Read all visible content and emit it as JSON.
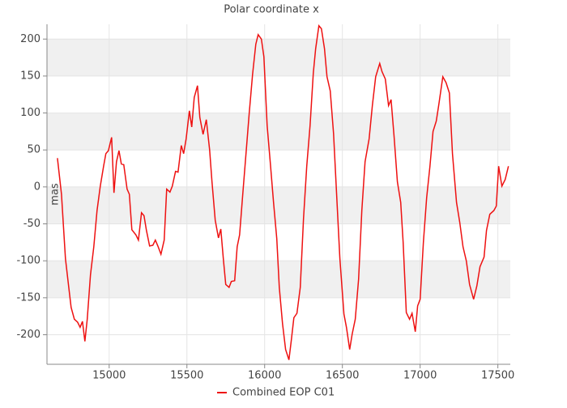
{
  "chart_data": {
    "type": "line",
    "title": "Polar coordinate x",
    "y_label": "mas",
    "xlim": [
      14600,
      17580
    ],
    "xticks": [
      15000,
      15500,
      16000,
      16500,
      17000,
      17500
    ],
    "ylim": [
      -240,
      220
    ],
    "yticks": [
      -200,
      -150,
      -100,
      -50,
      0,
      50,
      100,
      150,
      200
    ],
    "grid": true,
    "legend": "bottom",
    "x": [
      14667,
      14693,
      14719,
      14740,
      14755,
      14776,
      14797,
      14813,
      14828,
      14844,
      14859,
      14880,
      14901,
      14922,
      14943,
      14964,
      14979,
      14995,
      15016,
      15031,
      15047,
      15063,
      15078,
      15094,
      15115,
      15130,
      15146,
      15172,
      15188,
      15208,
      15224,
      15240,
      15260,
      15281,
      15297,
      15313,
      15333,
      15354,
      15370,
      15391,
      15406,
      15427,
      15443,
      15464,
      15479,
      15495,
      15516,
      15531,
      15547,
      15568,
      15583,
      15604,
      15625,
      15646,
      15661,
      15682,
      15703,
      15718,
      15734,
      15750,
      15771,
      15786,
      15807,
      15823,
      15839,
      15859,
      15880,
      15901,
      15922,
      15943,
      15958,
      15979,
      15995,
      16016,
      16036,
      16057,
      16078,
      16094,
      16115,
      16135,
      16156,
      16172,
      16188,
      16208,
      16229,
      16250,
      16271,
      16292,
      16313,
      16328,
      16349,
      16365,
      16385,
      16401,
      16422,
      16443,
      16464,
      16484,
      16510,
      16526,
      16547,
      16563,
      16583,
      16604,
      16625,
      16646,
      16672,
      16693,
      16714,
      16740,
      16755,
      16776,
      16797,
      16813,
      16833,
      16854,
      16875,
      16891,
      16911,
      16932,
      16948,
      16969,
      16984,
      17000,
      17021,
      17042,
      17063,
      17083,
      17104,
      17120,
      17146,
      17167,
      17188,
      17208,
      17234,
      17255,
      17276,
      17297,
      17318,
      17344,
      17365,
      17385,
      17411,
      17427,
      17448,
      17474,
      17490,
      17505,
      17526,
      17547,
      17568
    ],
    "series": [
      {
        "name": "Combined EOP C01",
        "color": "#ee1111",
        "values": [
          39,
          -10,
          -97,
          -136,
          -163,
          -179,
          -183,
          -190,
          -182,
          -209,
          -179,
          -119,
          -81,
          -32,
          1,
          28,
          45,
          49,
          67,
          -8,
          34,
          49,
          31,
          30,
          -3,
          -10,
          -58,
          -65,
          -72,
          -35,
          -39,
          -59,
          -80,
          -79,
          -72,
          -80,
          -91,
          -72,
          -3,
          -7,
          1,
          21,
          20,
          56,
          45,
          65,
          103,
          81,
          121,
          137,
          94,
          71,
          91,
          50,
          7,
          -45,
          -69,
          -57,
          -97,
          -132,
          -136,
          -128,
          -127,
          -81,
          -65,
          -10,
          45,
          100,
          152,
          193,
          206,
          200,
          176,
          83,
          34,
          -21,
          -70,
          -136,
          -185,
          -220,
          -234,
          -207,
          -177,
          -171,
          -136,
          -43,
          28,
          83,
          154,
          187,
          218,
          214,
          187,
          149,
          130,
          72,
          -15,
          -97,
          -172,
          -190,
          -220,
          -199,
          -179,
          -125,
          -32,
          34,
          65,
          110,
          149,
          167,
          156,
          146,
          110,
          118,
          67,
          7,
          -21,
          -75,
          -170,
          -179,
          -171,
          -196,
          -161,
          -152,
          -75,
          -15,
          28,
          75,
          89,
          111,
          149,
          141,
          127,
          45,
          -21,
          -48,
          -81,
          -100,
          -132,
          -152,
          -134,
          -108,
          -95,
          -59,
          -37,
          -32,
          -26,
          28,
          1,
          10,
          28
        ]
      }
    ]
  }
}
